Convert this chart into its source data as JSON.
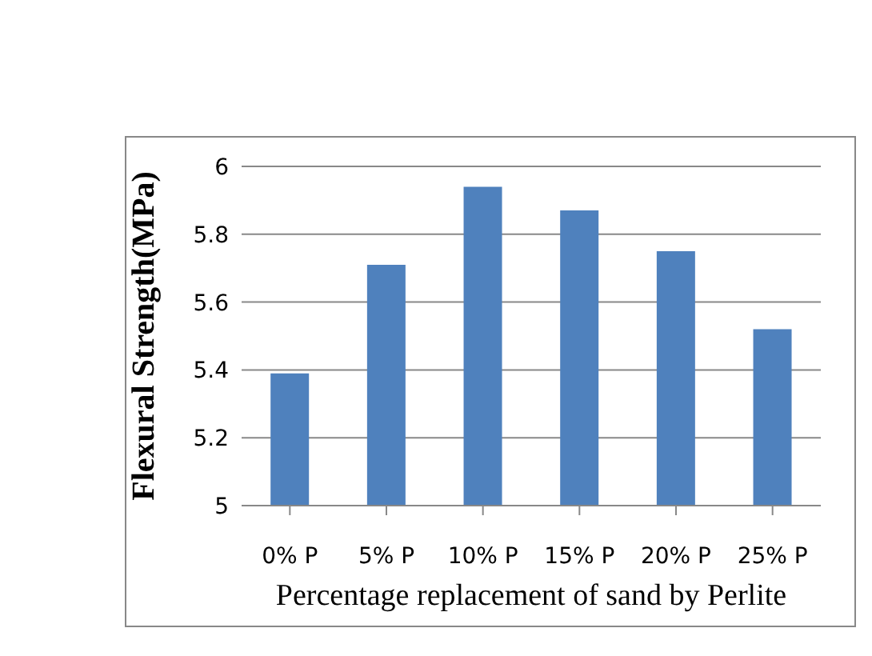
{
  "chart_data": {
    "type": "bar",
    "xlabel": "Percentage replacement  of sand by Perlite",
    "ylabel": "Flexural  Strength(MPa)",
    "categories": [
      "0% P",
      "5% P",
      "10% P",
      "15% P",
      "20% P",
      "25% P"
    ],
    "values": [
      5.39,
      5.71,
      5.94,
      5.87,
      5.75,
      5.52
    ],
    "color": "#4f81bd",
    "ylim": [
      5,
      6
    ],
    "yticks": [
      5,
      5.2,
      5.4,
      5.6,
      5.8,
      6
    ],
    "grid": "y"
  }
}
